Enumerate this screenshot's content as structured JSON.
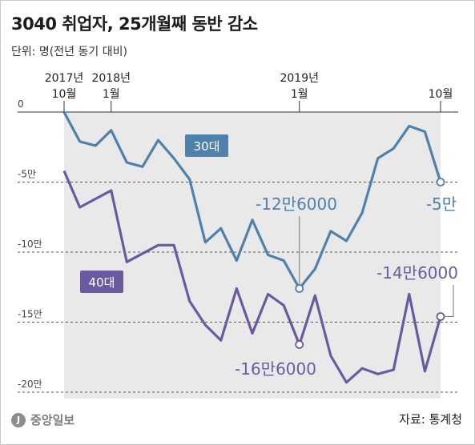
{
  "header": {
    "title": "3040 취업자, 25개월째 동반 감소",
    "subtitle": "단위: 명(전년 동기 대비)"
  },
  "footer": {
    "logo_text": "중앙일보",
    "source": "자료: 통계청"
  },
  "colors": {
    "series_30": "#4f81ab",
    "series_40": "#6b5aa0",
    "shade": "#e9e9e9",
    "grid": "#555555"
  },
  "chart_data": {
    "type": "line",
    "title": "3040 취업자, 25개월째 동반 감소",
    "ylabel": "",
    "ylim": [
      -200000,
      0
    ],
    "y_ticks": [
      {
        "value": 0,
        "label": "0"
      },
      {
        "value": -50000,
        "label": "-5만"
      },
      {
        "value": -100000,
        "label": "-10만"
      },
      {
        "value": -150000,
        "label": "-15만"
      },
      {
        "value": -200000,
        "label": "-20만"
      }
    ],
    "x_labels": [
      {
        "index": 0,
        "year": "2017년",
        "month": "10월"
      },
      {
        "index": 3,
        "year": "2018년",
        "month": "1월"
      },
      {
        "index": 15,
        "year": "2019년",
        "month": "1월"
      },
      {
        "index": 24,
        "year": "",
        "month": "10월"
      }
    ],
    "series": [
      {
        "name": "30대",
        "values": [
          0,
          -21000,
          -24000,
          -13000,
          -36000,
          -39000,
          -20000,
          -33000,
          -48000,
          -93000,
          -83000,
          -106000,
          -77000,
          -102000,
          -106000,
          -126000,
          -112000,
          -85000,
          -92000,
          -72000,
          -33000,
          -26000,
          -10000,
          -14000,
          -50000
        ]
      },
      {
        "name": "40대",
        "values": [
          -42000,
          -68000,
          -62000,
          -56000,
          -107000,
          -101000,
          -95000,
          -95000,
          -135000,
          -152000,
          -163000,
          -126000,
          -158000,
          -130000,
          -138000,
          -166000,
          -131000,
          -174000,
          -193000,
          -183000,
          -187000,
          -184000,
          -130000,
          -185000,
          -146000
        ]
      }
    ],
    "annotations": [
      {
        "series": "30대",
        "index": 15,
        "label": "-12만6000"
      },
      {
        "series": "30대",
        "index": 24,
        "label": "-5만"
      },
      {
        "series": "40대",
        "index": 15,
        "label": "-16만6000"
      },
      {
        "series": "40대",
        "index": 24,
        "label": "-14만6000"
      }
    ],
    "legend": [
      {
        "name": "30대",
        "placement": "inline-top-center"
      },
      {
        "name": "40대",
        "placement": "inline-left"
      }
    ],
    "grid": true
  }
}
